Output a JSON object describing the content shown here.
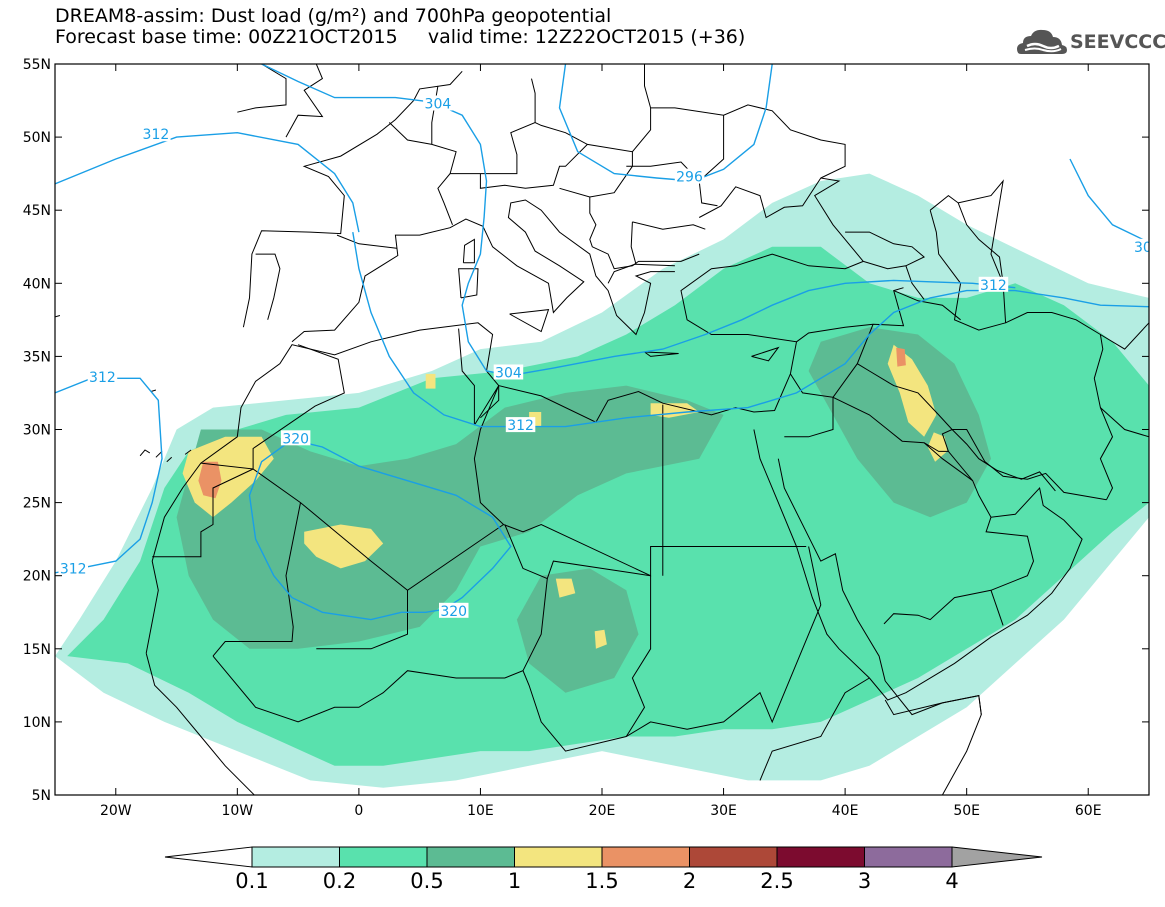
{
  "header": {
    "title_line_1": "DREAM8-assim: Dust load (g/m²) and 700hPa geopotential",
    "title_line_2": "Forecast base time: 00Z21OCT2015     valid time: 12Z22OCT2015 (+36)"
  },
  "logo": {
    "text": "SEEVCCC",
    "icon": "cloud-icon",
    "color": "#555555"
  },
  "map": {
    "lon_range": [
      -25,
      65
    ],
    "lat_range": [
      5,
      55
    ],
    "x_ticks": [
      {
        "lon": -20,
        "label": "20W"
      },
      {
        "lon": -10,
        "label": "10W"
      },
      {
        "lon": 0,
        "label": "0"
      },
      {
        "lon": 10,
        "label": "10E"
      },
      {
        "lon": 20,
        "label": "20E"
      },
      {
        "lon": 30,
        "label": "30E"
      },
      {
        "lon": 40,
        "label": "40E"
      },
      {
        "lon": 50,
        "label": "50E"
      },
      {
        "lon": 60,
        "label": "60E"
      }
    ],
    "y_ticks": [
      {
        "lat": 55,
        "label": "55N"
      },
      {
        "lat": 50,
        "label": "50N"
      },
      {
        "lat": 45,
        "label": "45N"
      },
      {
        "lat": 40,
        "label": "40N"
      },
      {
        "lat": 35,
        "label": "35N"
      },
      {
        "lat": 30,
        "label": "30N"
      },
      {
        "lat": 25,
        "label": "25N"
      },
      {
        "lat": 20,
        "label": "20N"
      },
      {
        "lat": 15,
        "label": "15N"
      },
      {
        "lat": 10,
        "label": "10N"
      },
      {
        "lat": 5,
        "label": "5N"
      }
    ],
    "contour_color": "#1a9fe6",
    "contour_labels": [
      {
        "label": "304",
        "lon": 6.5,
        "lat": 52.3
      },
      {
        "label": "312",
        "lon": -16.7,
        "lat": 50.2
      },
      {
        "label": "296",
        "lon": 27.2,
        "lat": 47.3
      },
      {
        "label": "312",
        "lon": 52.2,
        "lat": 39.9
      },
      {
        "label": "304",
        "lon": 12.3,
        "lat": 33.9
      },
      {
        "label": "312",
        "lon": -21.1,
        "lat": 33.6
      },
      {
        "label": "312",
        "lon": 13.3,
        "lat": 30.3
      },
      {
        "label": "320",
        "lon": -5.2,
        "lat": 29.4
      },
      {
        "label": "312",
        "lon": -23.5,
        "lat": 20.5
      },
      {
        "label": "320",
        "lon": 7.8,
        "lat": 17.6
      },
      {
        "label": "30",
        "lon": 64.5,
        "lat": 42.5
      }
    ]
  },
  "colorbar": {
    "colors": [
      "#ffffff",
      "#b4ede1",
      "#59e1ad",
      "#5cbb93",
      "#f3e57f",
      "#ea9265",
      "#ad4838",
      "#7c0b2f",
      "#8d6b9c",
      "#a2a2a2"
    ],
    "tick_labels": [
      "0.1",
      "0.2",
      "0.5",
      "1",
      "1.5",
      "2",
      "2.5",
      "3",
      "4"
    ]
  }
}
